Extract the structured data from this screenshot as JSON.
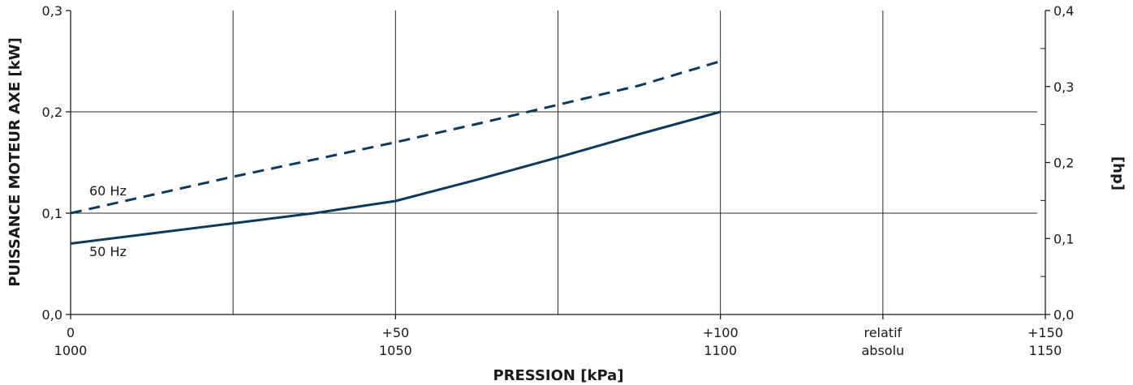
{
  "chart_data": {
    "type": "line",
    "xlabel": "PRESSION  [kPa]",
    "ylabel_left": "PUISSANCE MOTEUR AXE  [kW]",
    "ylabel_right": "[hp]",
    "xlim": [
      0,
      150
    ],
    "ylim": [
      0,
      0.3
    ],
    "ylim_right": [
      0,
      0.4
    ],
    "grid": true,
    "x_ticks_top": [
      "0",
      "+50",
      "+100",
      "relatif",
      "+150"
    ],
    "x_ticks_bottom": [
      "1000",
      "1050",
      "1100",
      "absolu",
      "1150"
    ],
    "x_tick_values": [
      0,
      50,
      100,
      125,
      150
    ],
    "y_ticks_left": [
      "0,0",
      "0,1",
      "0,2",
      "0,3"
    ],
    "y_ticks_left_values": [
      0,
      0.1,
      0.2,
      0.3
    ],
    "y_ticks_right": [
      "0,0",
      "0,1",
      "0,2",
      "0,3",
      "0,4"
    ],
    "y_ticks_right_values": [
      0,
      0.1,
      0.2,
      0.3,
      0.4
    ],
    "series": [
      {
        "name": "60 Hz",
        "style": "dashed",
        "color": "#0d3a5c",
        "x": [
          0,
          12.5,
          25,
          37.5,
          50,
          62.5,
          75,
          87.5,
          100
        ],
        "y": [
          0.1,
          0.118,
          0.136,
          0.153,
          0.17,
          0.188,
          0.207,
          0.226,
          0.25
        ]
      },
      {
        "name": "50 Hz",
        "style": "solid",
        "color": "#0d3a5c",
        "x": [
          0,
          12.5,
          25,
          37.5,
          50,
          62.5,
          75,
          87.5,
          100
        ],
        "y": [
          0.07,
          0.08,
          0.09,
          0.1,
          0.112,
          0.133,
          0.155,
          0.178,
          0.2
        ]
      }
    ]
  }
}
